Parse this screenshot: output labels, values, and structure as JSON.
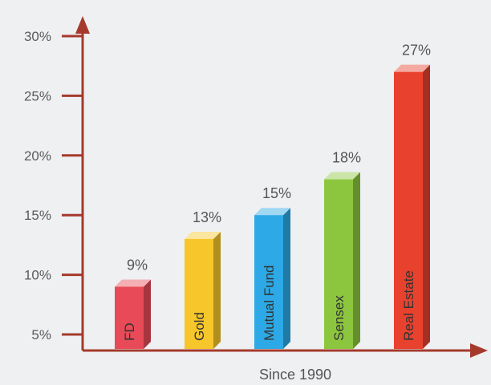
{
  "chart_data": {
    "type": "bar",
    "title": "",
    "xlabel": "Since 1990",
    "ylabel": "",
    "ylim": [
      3,
      30
    ],
    "yticks": [
      "30%",
      "25%",
      "20%",
      "15%",
      "10%",
      "5%"
    ],
    "ytick_values": [
      30,
      25,
      20,
      15,
      10,
      5
    ],
    "grid": false,
    "legend": "none",
    "categories": [
      "FD",
      "Gold",
      "Mutual Fund",
      "Sensex",
      "Real Estate"
    ],
    "values": [
      9,
      13,
      15,
      18,
      27
    ],
    "value_labels": [
      "9%",
      "13%",
      "15%",
      "18%",
      "27%"
    ],
    "colors": [
      "#e84a57",
      "#f6c62a",
      "#2ca9e6",
      "#8cc63e",
      "#e8412e"
    ],
    "axis_color": "#a53a2c"
  }
}
